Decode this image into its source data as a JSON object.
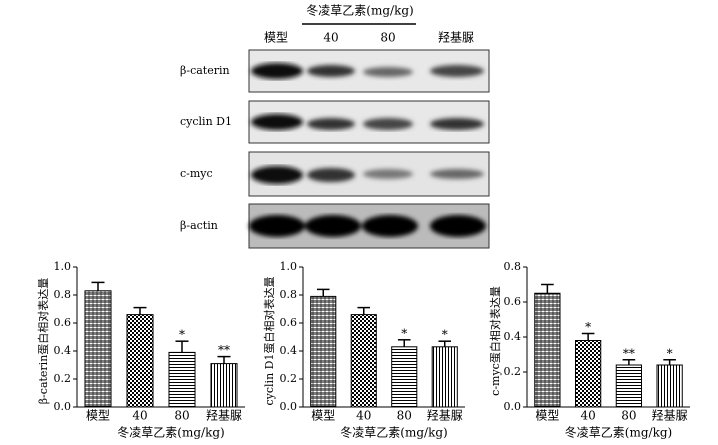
{
  "blot": {
    "group_label": "冬凌草乙素(mg/kg)",
    "lanes": [
      "模型",
      "40",
      "80",
      "羟基脲"
    ],
    "rows": [
      "β-caterin",
      "cyclin D1",
      "c-myc",
      "β-actin"
    ]
  },
  "chart_data": [
    {
      "type": "bar",
      "ylabel": "β-caterin蛋白相对表达量",
      "xlabel": "冬凌草乙素(mg/kg)",
      "categories": [
        "模型",
        "40",
        "80",
        "羟基脲"
      ],
      "values": [
        0.83,
        0.66,
        0.39,
        0.31
      ],
      "errors": [
        0.06,
        0.05,
        0.08,
        0.05
      ],
      "significance": [
        null,
        null,
        "*",
        "**"
      ],
      "ylim": [
        0,
        1.0
      ],
      "yticks": [
        {
          "value": 0,
          "label": "0.0"
        },
        0.2,
        0.4,
        0.6,
        0.8,
        {
          "value": 1.0,
          "label": "1.0"
        }
      ]
    },
    {
      "type": "bar",
      "ylabel": "cyclin D1蛋白相对表达量",
      "xlabel": "冬凌草乙素(mg/kg)",
      "categories": [
        "模型",
        "40",
        "80",
        "羟基脲"
      ],
      "values": [
        0.79,
        0.66,
        0.43,
        0.43
      ],
      "errors": [
        0.05,
        0.05,
        0.05,
        0.04
      ],
      "significance": [
        null,
        null,
        "*",
        "*"
      ],
      "ylim": [
        0,
        1.0
      ],
      "yticks": [
        {
          "value": 0,
          "label": "0.0"
        },
        0.2,
        0.4,
        0.6,
        0.8,
        {
          "value": 1.0,
          "label": "1.0"
        }
      ]
    },
    {
      "type": "bar",
      "ylabel": "c-myc蛋白相对表达量",
      "xlabel": "冬凌草乙素(mg/kg)",
      "categories": [
        "模型",
        "40",
        "80",
        "羟基脲"
      ],
      "values": [
        0.65,
        0.38,
        0.24,
        0.24
      ],
      "errors": [
        0.05,
        0.04,
        0.03,
        0.03
      ],
      "significance": [
        null,
        "*",
        "**",
        "*"
      ],
      "ylim": [
        0,
        0.8
      ],
      "yticks": [
        {
          "value": 0,
          "label": "0.0"
        },
        0.2,
        0.4,
        0.6,
        0.8
      ]
    }
  ]
}
